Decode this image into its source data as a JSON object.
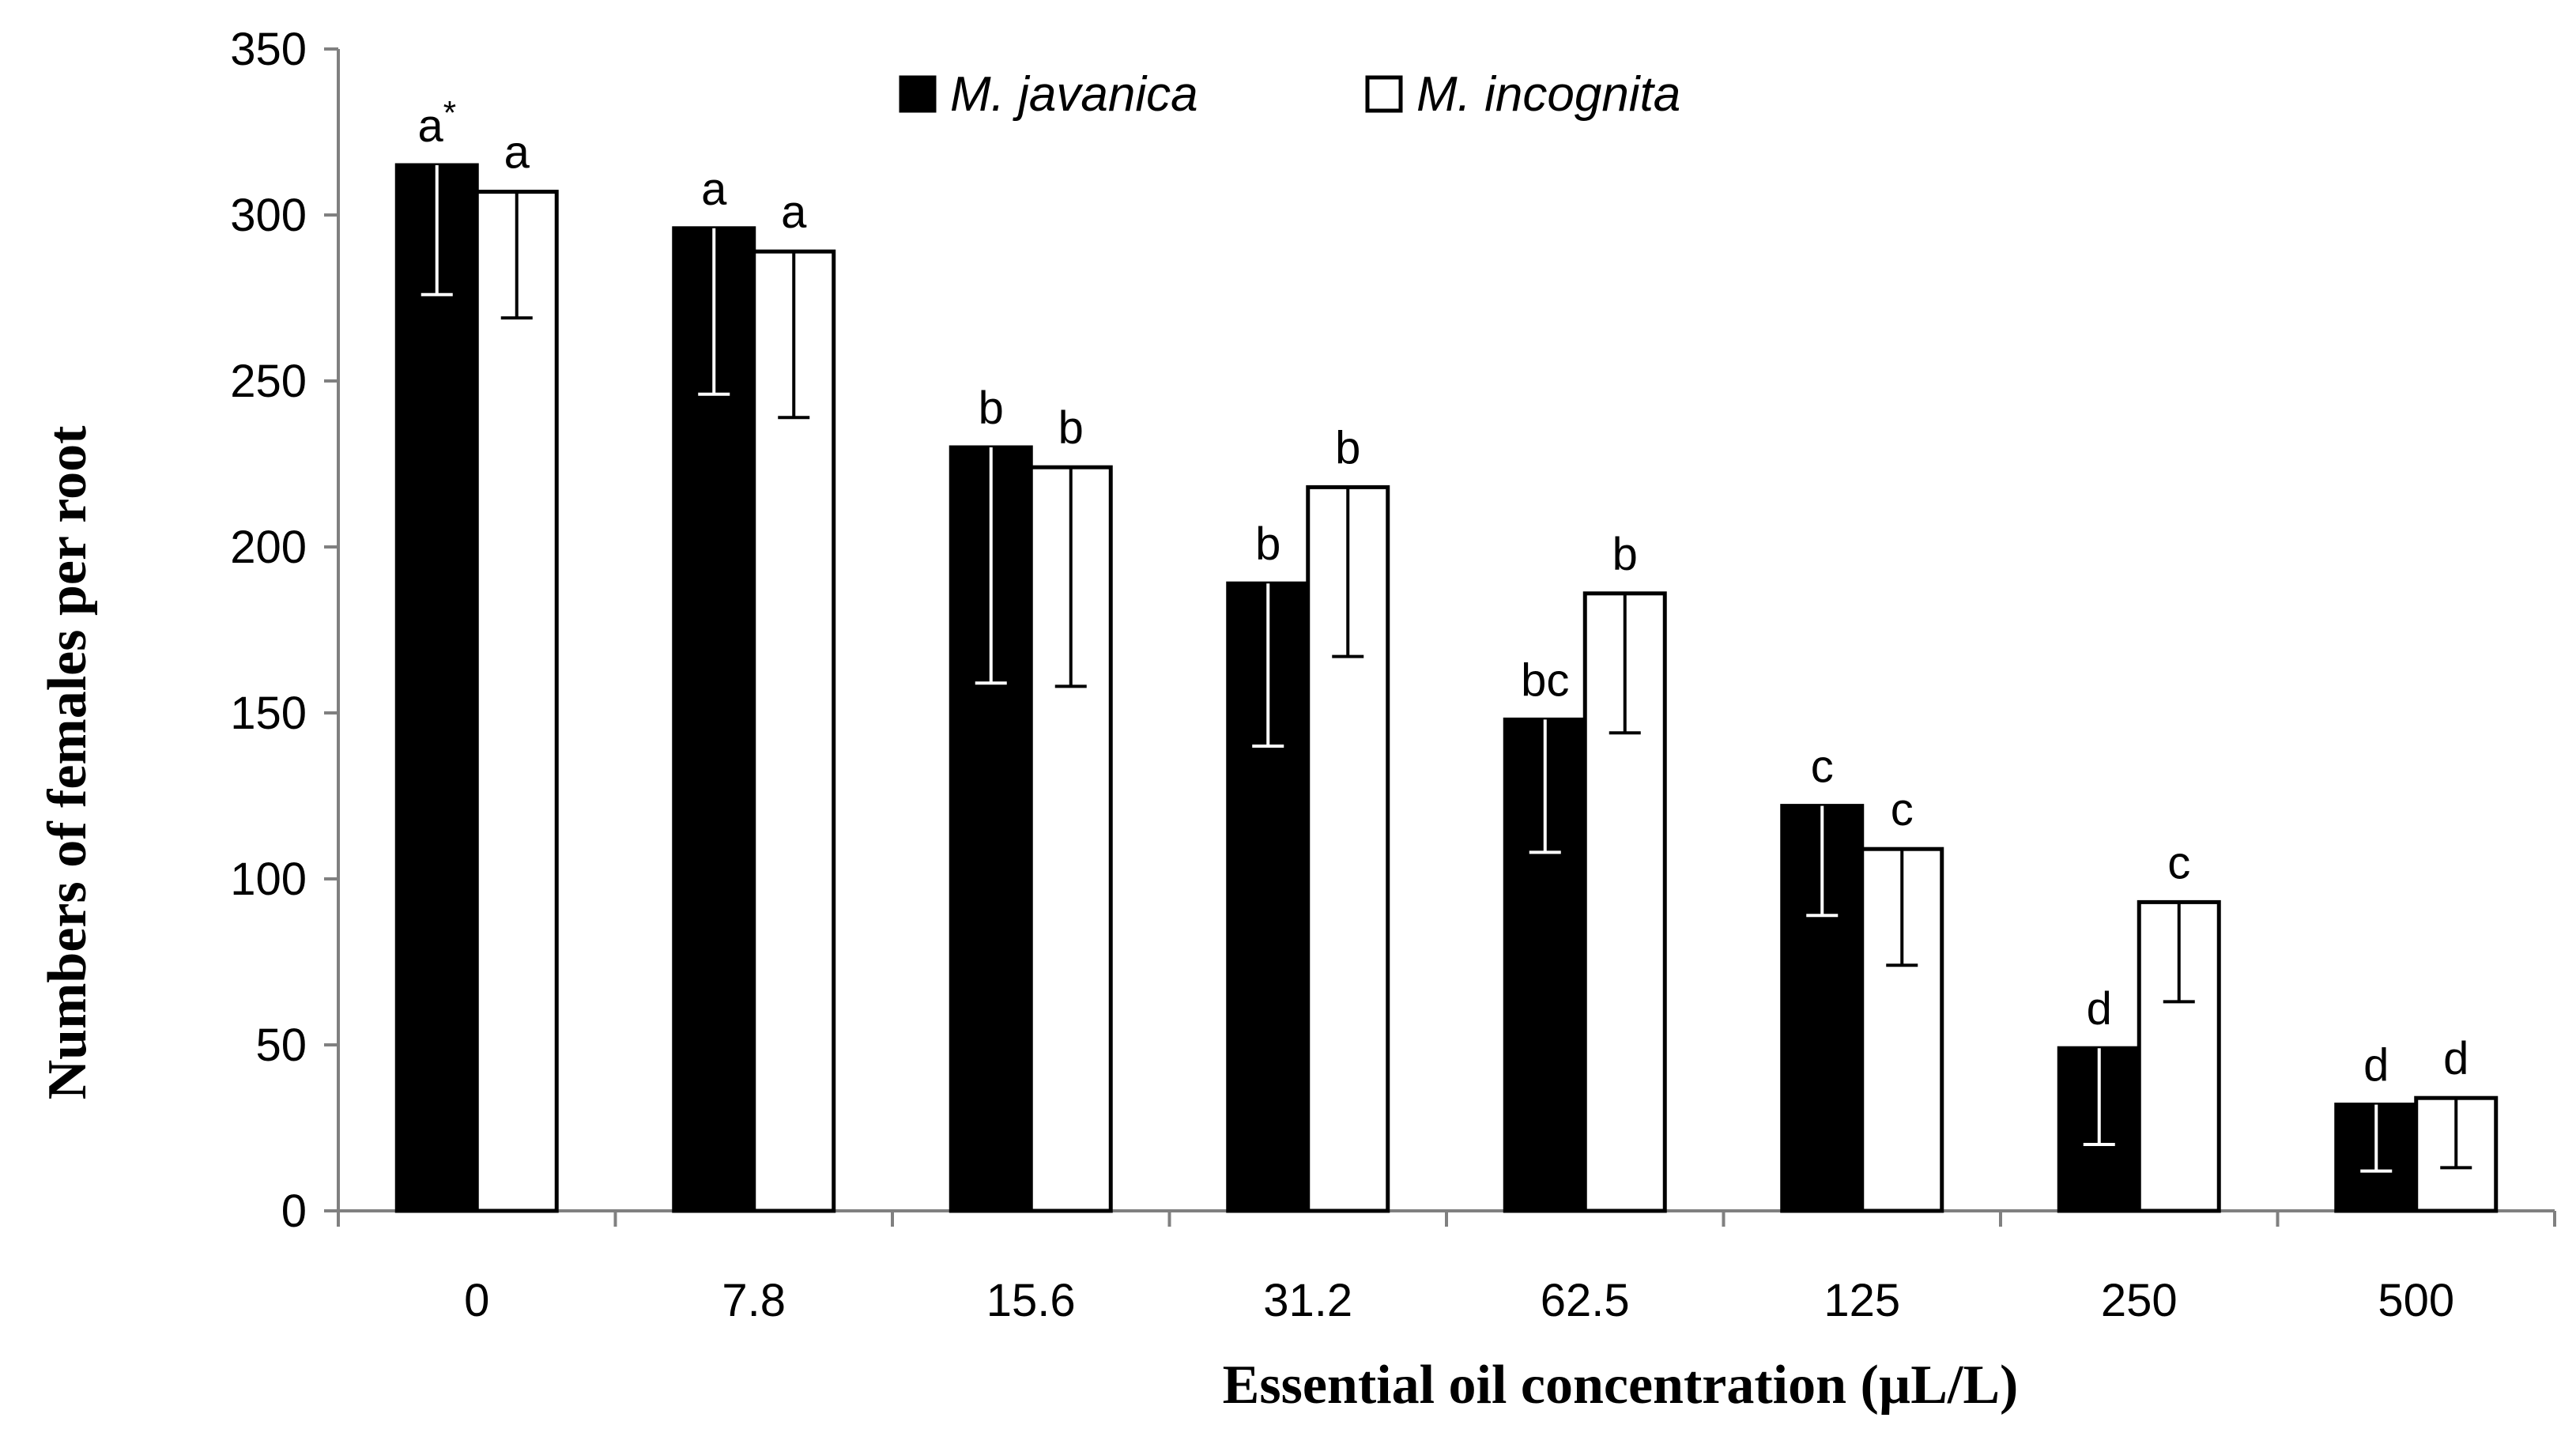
{
  "chart_data": {
    "type": "bar",
    "title": "",
    "xlabel": "Essential oil concentration (µL/L)",
    "ylabel": "Numbers of females per root",
    "ylim": [
      0,
      350
    ],
    "yticks": [
      0,
      50,
      100,
      150,
      200,
      250,
      300,
      350
    ],
    "ytick_labels": [
      "0",
      "50",
      "100",
      "150",
      "200",
      "250",
      "300",
      "350"
    ],
    "categories": [
      "0",
      "7.8",
      "15.6",
      "31.2",
      "62.5",
      "125",
      "250",
      "500"
    ],
    "legend_position": "top-center",
    "series": [
      {
        "name": "M. javanica",
        "fill": "#000000",
        "values": [
          315,
          296,
          230,
          189,
          148,
          122,
          49,
          32
        ],
        "error": [
          39,
          50,
          71,
          49,
          40,
          33,
          29,
          20
        ],
        "letters": [
          "a",
          "a",
          "b",
          "b",
          "bc",
          "c",
          "d",
          "d"
        ],
        "letter_suffix": [
          "*",
          "",
          "",
          "",
          "",
          "",
          "",
          ""
        ]
      },
      {
        "name": "M. incognita",
        "fill": "#ffffff",
        "values": [
          307,
          289,
          224,
          218,
          186,
          109,
          93,
          34
        ],
        "error": [
          38,
          50,
          66,
          51,
          42,
          35,
          30,
          21
        ],
        "letters": [
          "a",
          "a",
          "b",
          "b",
          "b",
          "c",
          "c",
          "d"
        ],
        "letter_suffix": [
          "",
          "",
          "",
          "",
          "",
          "",
          "",
          ""
        ]
      }
    ]
  }
}
